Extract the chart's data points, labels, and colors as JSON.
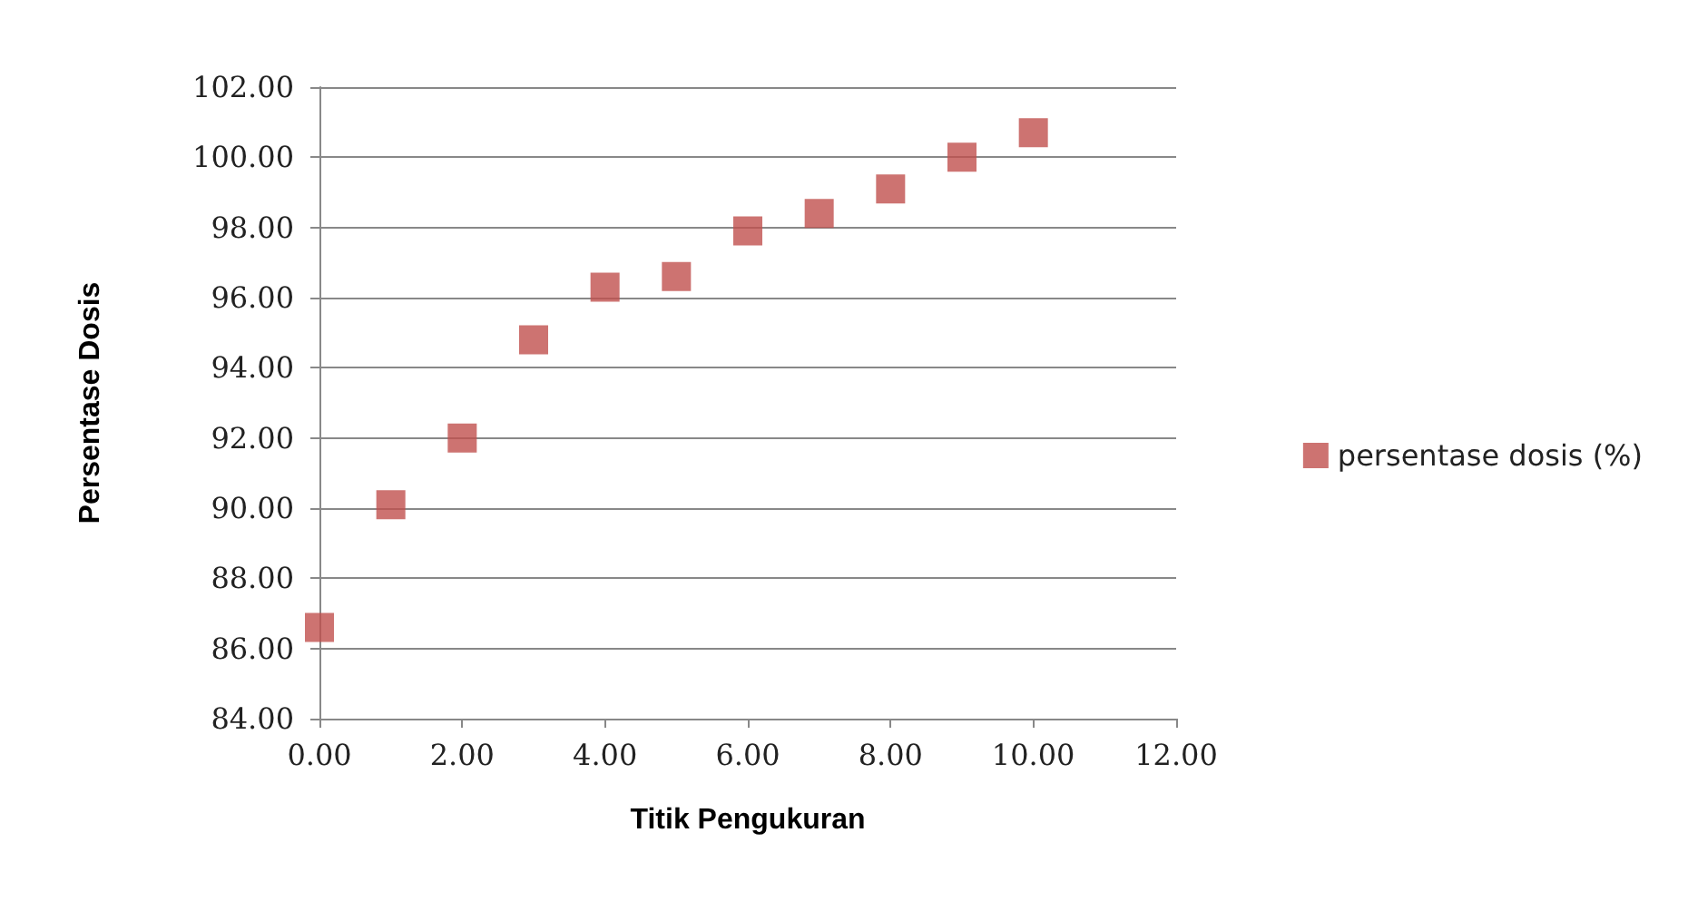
{
  "chart_data": {
    "type": "scatter",
    "xlabel": "Titik Pengukuran",
    "ylabel": "Persentase Dosis",
    "x": [
      0,
      1,
      2,
      3,
      4,
      5,
      6,
      7,
      8,
      9,
      10
    ],
    "series": [
      {
        "name": "persentase dosis (%)",
        "color": "#c0504d",
        "values": [
          86.6,
          90.1,
          92.0,
          94.8,
          96.3,
          96.6,
          97.9,
          98.4,
          99.1,
          100.0,
          100.7
        ]
      }
    ],
    "xlim": [
      0,
      12
    ],
    "xticks": [
      {
        "value": 0,
        "label": "0.00"
      },
      {
        "value": 2,
        "label": "2.00"
      },
      {
        "value": 4,
        "label": "4.00"
      },
      {
        "value": 6,
        "label": "6.00"
      },
      {
        "value": 8,
        "label": "8.00"
      },
      {
        "value": 10,
        "label": "10.00"
      },
      {
        "value": 12,
        "label": "12.00"
      }
    ],
    "ylim": [
      84,
      102
    ],
    "yticks": [
      {
        "value": 84,
        "label": "84.00"
      },
      {
        "value": 86,
        "label": "86.00"
      },
      {
        "value": 88,
        "label": "88.00"
      },
      {
        "value": 90,
        "label": "90.00"
      },
      {
        "value": 92,
        "label": "92.00"
      },
      {
        "value": 94,
        "label": "94.00"
      },
      {
        "value": 96,
        "label": "96.00"
      },
      {
        "value": 98,
        "label": "98.00"
      },
      {
        "value": 100,
        "label": "100.00"
      },
      {
        "value": 102,
        "label": "102.00"
      }
    ],
    "grid": "y",
    "legend": "right",
    "marker": "square"
  }
}
